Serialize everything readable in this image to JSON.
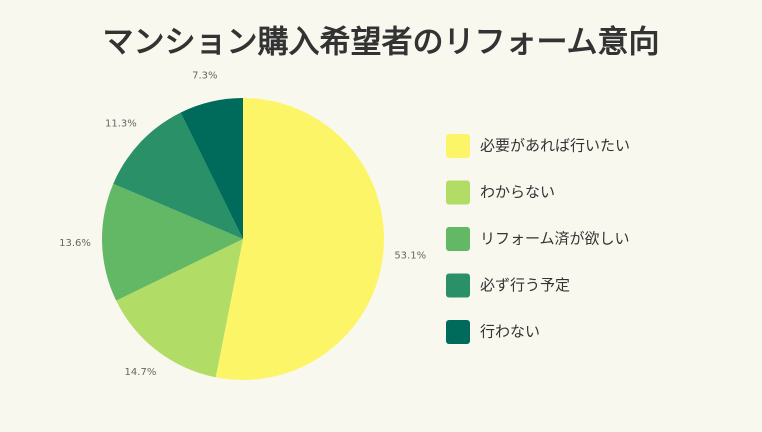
{
  "chart_data": {
    "type": "pie",
    "title": "マンション購入希望者のリフォーム意向",
    "categories": [
      "必要があれば行いたい",
      "わからない",
      "リフォーム済が欲しい",
      "必ず行う予定",
      "行わない"
    ],
    "values": [
      53.1,
      14.7,
      13.6,
      11.3,
      7.3
    ],
    "value_labels": [
      "53.1%",
      "14.7%",
      "13.6%",
      "11.3%",
      "7.3%"
    ],
    "colors": [
      "#fdf568",
      "#b1dc65",
      "#63b866",
      "#2a9068",
      "#006a5b"
    ],
    "legend": "right"
  }
}
